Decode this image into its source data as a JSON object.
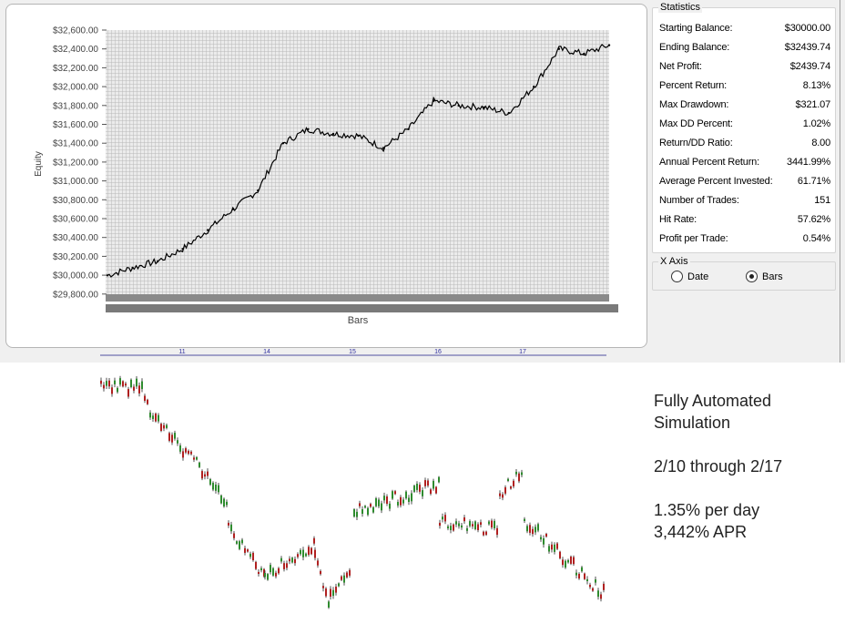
{
  "equity_chart": {
    "ylabel": "Equity",
    "xlabel": "Bars",
    "y_ticks": [
      "$32,600.00",
      "$32,400.00",
      "$32,200.00",
      "$32,000.00",
      "$31,800.00",
      "$31,600.00",
      "$31,400.00",
      "$31,200.00",
      "$31,000.00",
      "$30,800.00",
      "$30,600.00",
      "$30,400.00",
      "$30,200.00",
      "$30,000.00",
      "$29,800.00"
    ]
  },
  "statistics": {
    "title": "Statistics",
    "rows": [
      {
        "label": "Starting Balance:",
        "value": "$30000.00"
      },
      {
        "label": "Ending Balance:",
        "value": "$32439.74"
      },
      {
        "label": "Net Profit:",
        "value": "$2439.74"
      },
      {
        "label": "Percent Return:",
        "value": "8.13%"
      },
      {
        "label": "Max Drawdown:",
        "value": "$321.07"
      },
      {
        "label": "Max DD Percent:",
        "value": "1.02%"
      },
      {
        "label": "Return/DD Ratio:",
        "value": "8.00"
      },
      {
        "label": "Annual Percent Return:",
        "value": "3441.99%"
      },
      {
        "label": "Average Percent Invested:",
        "value": "61.71%"
      },
      {
        "label": "Number of Trades:",
        "value": "151"
      },
      {
        "label": "Hit Rate:",
        "value": "57.62%"
      },
      {
        "label": "Profit per Trade:",
        "value": "0.54%"
      }
    ]
  },
  "x_axis_group": {
    "title": "X Axis",
    "options": [
      {
        "label": "Date",
        "selected": false
      },
      {
        "label": "Bars",
        "selected": true
      }
    ]
  },
  "price_strip": {
    "day_labels": [
      "11",
      "14",
      "15",
      "16",
      "17"
    ]
  },
  "notes": {
    "line1": "Fully Automated",
    "line2": "Simulation",
    "line3": "2/10 through 2/17",
    "line4": "1.35% per day",
    "line5": "3,442% APR"
  },
  "chart_data": {
    "type": "line",
    "ylabel": "Equity",
    "xlabel": "Bars",
    "ylim": [
      29800,
      32600
    ],
    "grid": true,
    "x": [
      0,
      5,
      10,
      15,
      20,
      25,
      30,
      35,
      40,
      45,
      50,
      55,
      60,
      65,
      70,
      75,
      80,
      85,
      90,
      95,
      100
    ],
    "series": [
      {
        "values": [
          30000,
          30080,
          30150,
          30280,
          30480,
          30700,
          30900,
          31400,
          31550,
          31500,
          31480,
          31350,
          31550,
          31850,
          31800,
          31780,
          31720,
          32000,
          32400,
          32350,
          32440
        ]
      }
    ]
  }
}
